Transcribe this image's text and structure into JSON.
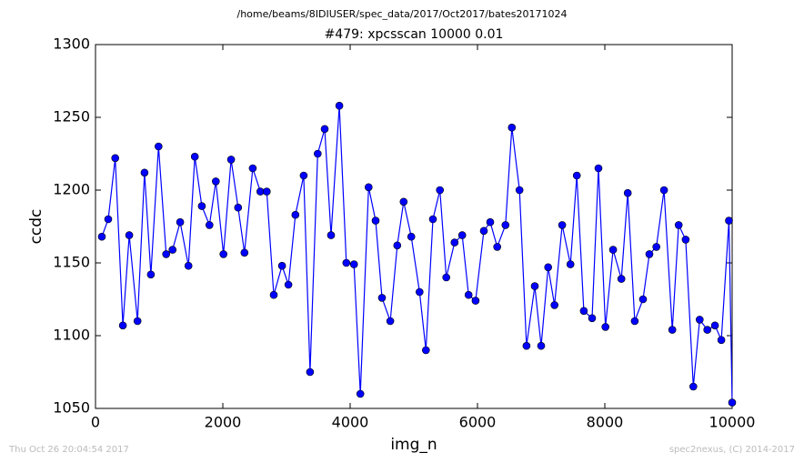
{
  "chart_data": {
    "type": "line",
    "suptitle": "/home/beams/8IDIUSER/spec_data/2017/Oct2017/bates20171024",
    "title": "#479: xpcsscan 10000 0.01",
    "xlabel": "img_n",
    "ylabel": "ccdc",
    "footer_left": "Thu Oct 26 20:04:54 2017",
    "footer_right": "spec2nexus, (C) 2014-2017",
    "x": [
      100,
      200,
      310,
      430,
      530,
      660,
      770,
      870,
      990,
      1110,
      1210,
      1330,
      1460,
      1560,
      1670,
      1790,
      1890,
      2010,
      2130,
      2240,
      2340,
      2470,
      2590,
      2690,
      2800,
      2930,
      3030,
      3140,
      3270,
      3370,
      3490,
      3600,
      3700,
      3830,
      3940,
      4060,
      4160,
      4290,
      4400,
      4500,
      4630,
      4740,
      4840,
      4960,
      5090,
      5190,
      5300,
      5410,
      5510,
      5640,
      5760,
      5860,
      5970,
      6100,
      6200,
      6310,
      6440,
      6540,
      6660,
      6770,
      6900,
      7000,
      7110,
      7210,
      7330,
      7460,
      7560,
      7670,
      7800,
      7900,
      8010,
      8130,
      8260,
      8360,
      8470,
      8600,
      8700,
      8810,
      8930,
      9060,
      9160,
      9270,
      9390,
      9490,
      9610,
      9730,
      9830,
      9950,
      10000
    ],
    "series": [
      {
        "name": "ccdc",
        "color": "#0000ff",
        "values": [
          1168,
          1180,
          1222,
          1107,
          1169,
          1110,
          1212,
          1142,
          1230,
          1156,
          1159,
          1178,
          1148,
          1223,
          1189,
          1176,
          1206,
          1156,
          1221,
          1188,
          1157,
          1215,
          1199,
          1199,
          1128,
          1148,
          1135,
          1183,
          1210,
          1075,
          1225,
          1242,
          1169,
          1258,
          1150,
          1149,
          1060,
          1202,
          1179,
          1126,
          1110,
          1162,
          1192,
          1168,
          1130,
          1090,
          1180,
          1200,
          1140,
          1164,
          1169,
          1128,
          1124,
          1172,
          1178,
          1161,
          1176,
          1243,
          1200,
          1093,
          1134,
          1093,
          1147,
          1121,
          1176,
          1149,
          1210,
          1117,
          1112,
          1215,
          1106,
          1159,
          1139,
          1198,
          1110,
          1125,
          1156,
          1161,
          1200,
          1104,
          1176,
          1166,
          1065,
          1111,
          1104,
          1107,
          1097,
          1179,
          1054
        ]
      }
    ],
    "xlim": [
      0,
      10000
    ],
    "xticks": [
      0,
      2000,
      4000,
      6000,
      8000,
      10000
    ],
    "ylim": [
      1050,
      1300
    ],
    "yticks": [
      1050,
      1100,
      1150,
      1200,
      1250,
      1300
    ]
  }
}
